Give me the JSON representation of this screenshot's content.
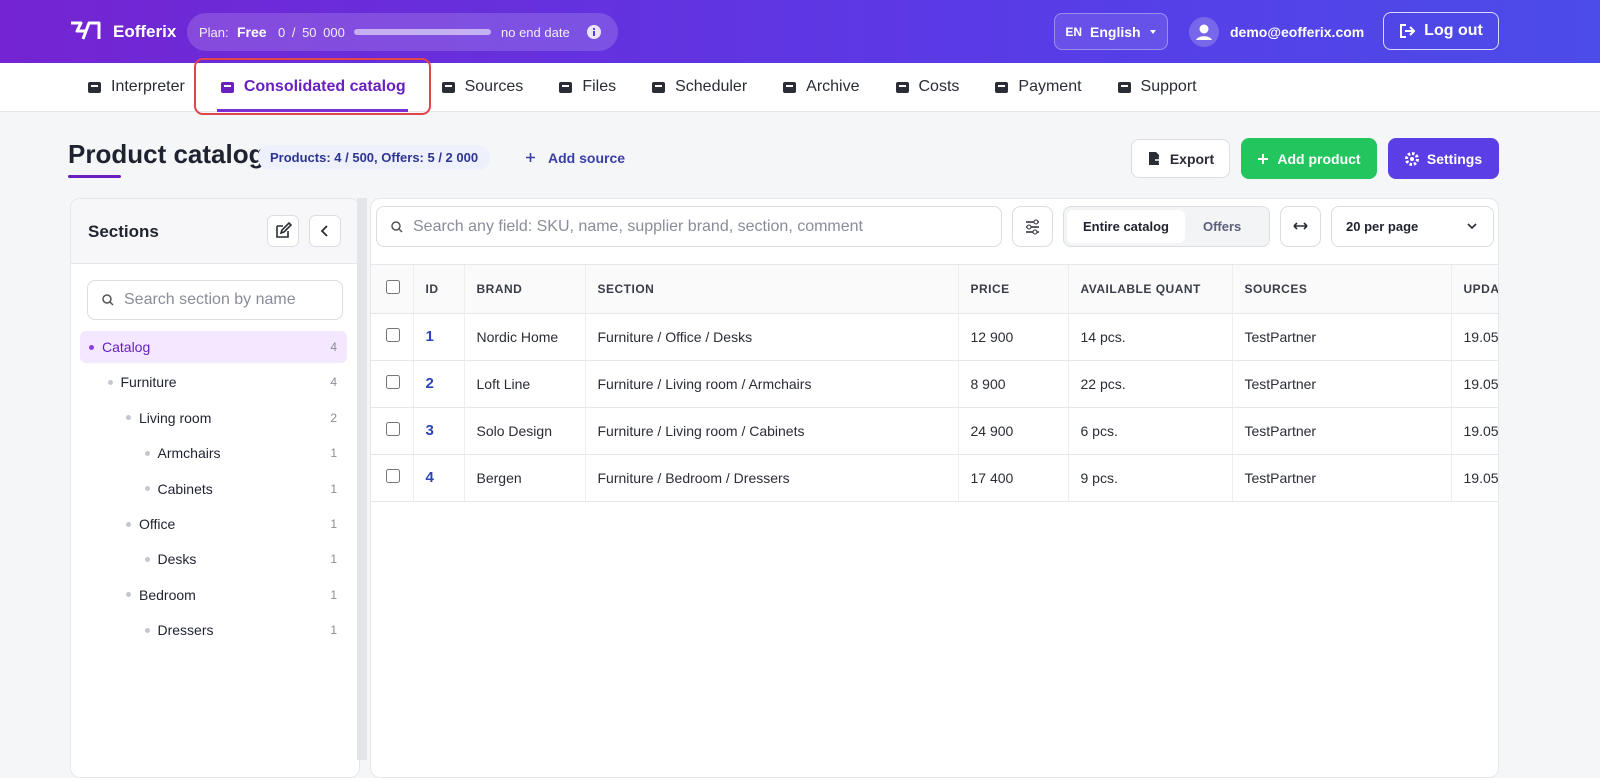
{
  "header": {
    "brand": "Eofferix",
    "plan_label": "Plan:",
    "plan": "Free",
    "usage": "0 / 50 000",
    "end_date": "no end date",
    "lang_code": "EN",
    "lang": "English",
    "user": "demo@eofferix.com",
    "logout": "Log out"
  },
  "nav": {
    "items": [
      "Interpreter",
      "Consolidated catalog",
      "Sources",
      "Files",
      "Scheduler",
      "Archive",
      "Costs",
      "Payment",
      "Support"
    ],
    "active": 1
  },
  "page": {
    "title": "Product catalog",
    "stats": "Products: 4 / 500, Offers: 5 / 2 000",
    "add_source": "Add source",
    "export": "Export",
    "add_product": "Add product",
    "settings": "Settings"
  },
  "sidebar": {
    "title": "Sections",
    "search_placeholder": "Search section by name",
    "tree": [
      {
        "label": "Catalog",
        "count": 4,
        "children": [
          {
            "label": "Furniture",
            "count": 4,
            "children": [
              {
                "label": "Living room",
                "count": 2,
                "children": [
                  {
                    "label": "Armchairs",
                    "count": 1,
                    "children": []
                  },
                  {
                    "label": "Cabinets",
                    "count": 1,
                    "children": []
                  }
                ]
              },
              {
                "label": "Office",
                "count": 1,
                "children": [
                  {
                    "label": "Desks",
                    "count": 1,
                    "children": []
                  }
                ]
              },
              {
                "label": "Bedroom",
                "count": 1,
                "children": [
                  {
                    "label": "Dressers",
                    "count": 1,
                    "children": []
                  }
                ]
              }
            ]
          }
        ]
      }
    ]
  },
  "toolbar": {
    "search_placeholder": "Search any field: SKU, name, supplier brand, section, comment",
    "scope": [
      "Entire catalog",
      "Offers"
    ],
    "per_page": "20 per page"
  },
  "table": {
    "columns": [
      "ID",
      "BRAND",
      "SECTION",
      "PRICE",
      "AVAILABLE QUANT",
      "SOURCES",
      "UPDA"
    ],
    "rows": [
      [
        "1",
        "Nordic Home",
        "Furniture / Office / Desks",
        "12 900",
        "14 pcs.",
        "TestPartner",
        "19.05"
      ],
      [
        "2",
        "Loft Line",
        "Furniture / Living room / Armchairs",
        "8 900",
        "22 pcs.",
        "TestPartner",
        "19.05"
      ],
      [
        "3",
        "Solo Design",
        "Furniture / Living room / Cabinets",
        "24 900",
        "6 pcs.",
        "TestPartner",
        "19.05"
      ],
      [
        "4",
        "Bergen",
        "Furniture / Bedroom / Dressers",
        "17 400",
        "9 pcs.",
        "TestPartner",
        "19.05"
      ]
    ]
  }
}
